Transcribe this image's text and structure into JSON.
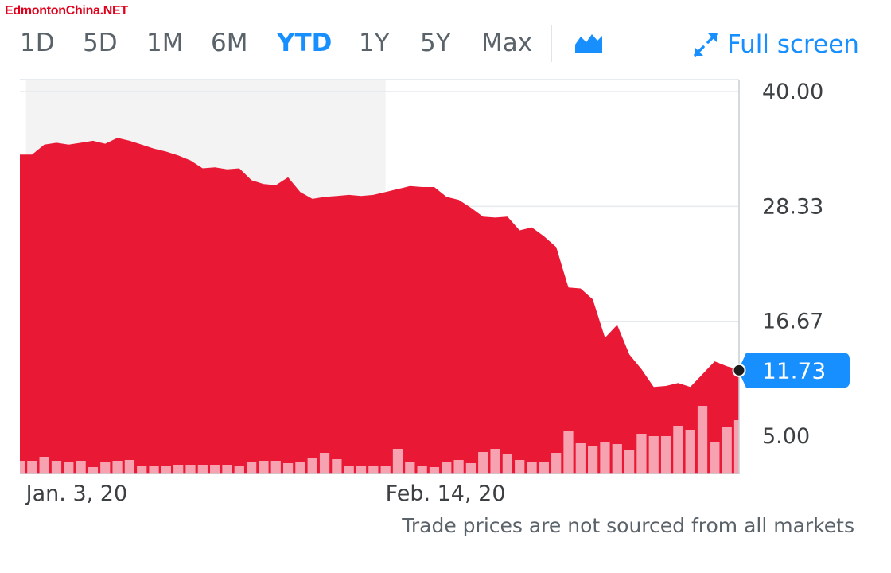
{
  "watermark": "EdmontonChina.NET",
  "toolbar": {
    "ranges": [
      "1D",
      "5D",
      "1M",
      "6M",
      "YTD",
      "1Y",
      "5Y",
      "Max"
    ],
    "active_range": "YTD",
    "chart_type_icon": "mountain-chart-icon",
    "fullscreen_icon": "expand-arrows-icon",
    "fullscreen_label": "Full screen"
  },
  "colors": {
    "area": "#e8112d",
    "volume": "#f6a2b0",
    "accent": "#188fff",
    "text": "#5b636a"
  },
  "footnote": "Trade prices are not sourced from all markets",
  "chart_data": {
    "type": "area",
    "ylim": [
      0,
      40
    ],
    "y_ticks": [
      "40.00",
      "28.33",
      "16.67",
      "5.00"
    ],
    "x_tick_labels": [
      {
        "label": "Jan. 3, 20",
        "index": 1
      },
      {
        "label": "Feb. 14, 20",
        "index": 30
      }
    ],
    "highlighted_range": [
      1,
      30
    ],
    "current_value": "11.73",
    "prices": [
      33.6,
      33.6,
      34.6,
      34.8,
      34.6,
      34.8,
      35.0,
      34.7,
      35.3,
      35.0,
      34.6,
      34.2,
      33.9,
      33.5,
      33.0,
      32.2,
      32.3,
      32.1,
      32.2,
      31.0,
      30.6,
      30.5,
      31.3,
      29.8,
      29.1,
      29.3,
      29.4,
      29.5,
      29.4,
      29.5,
      29.8,
      30.1,
      30.4,
      30.3,
      30.3,
      29.3,
      29.0,
      28.2,
      27.3,
      27.2,
      27.3,
      25.9,
      26.2,
      25.3,
      24.2,
      20.1,
      20.0,
      18.9,
      15.0,
      16.3,
      13.3,
      11.8,
      10.0,
      10.1,
      10.4,
      10.0,
      11.3,
      12.6,
      12.1,
      11.73
    ],
    "volumes": [
      16,
      16,
      21,
      16,
      15,
      16,
      8,
      15,
      16,
      17,
      10,
      10,
      10,
      11,
      11,
      11,
      11,
      11,
      10,
      14,
      16,
      16,
      13,
      15,
      19,
      26,
      18,
      10,
      10,
      9,
      9,
      31,
      14,
      10,
      8,
      14,
      17,
      13,
      27,
      31,
      25,
      17,
      15,
      14,
      26,
      53,
      38,
      34,
      39,
      37,
      30,
      50,
      47,
      47,
      60,
      55,
      85,
      39,
      58,
      67
    ]
  }
}
